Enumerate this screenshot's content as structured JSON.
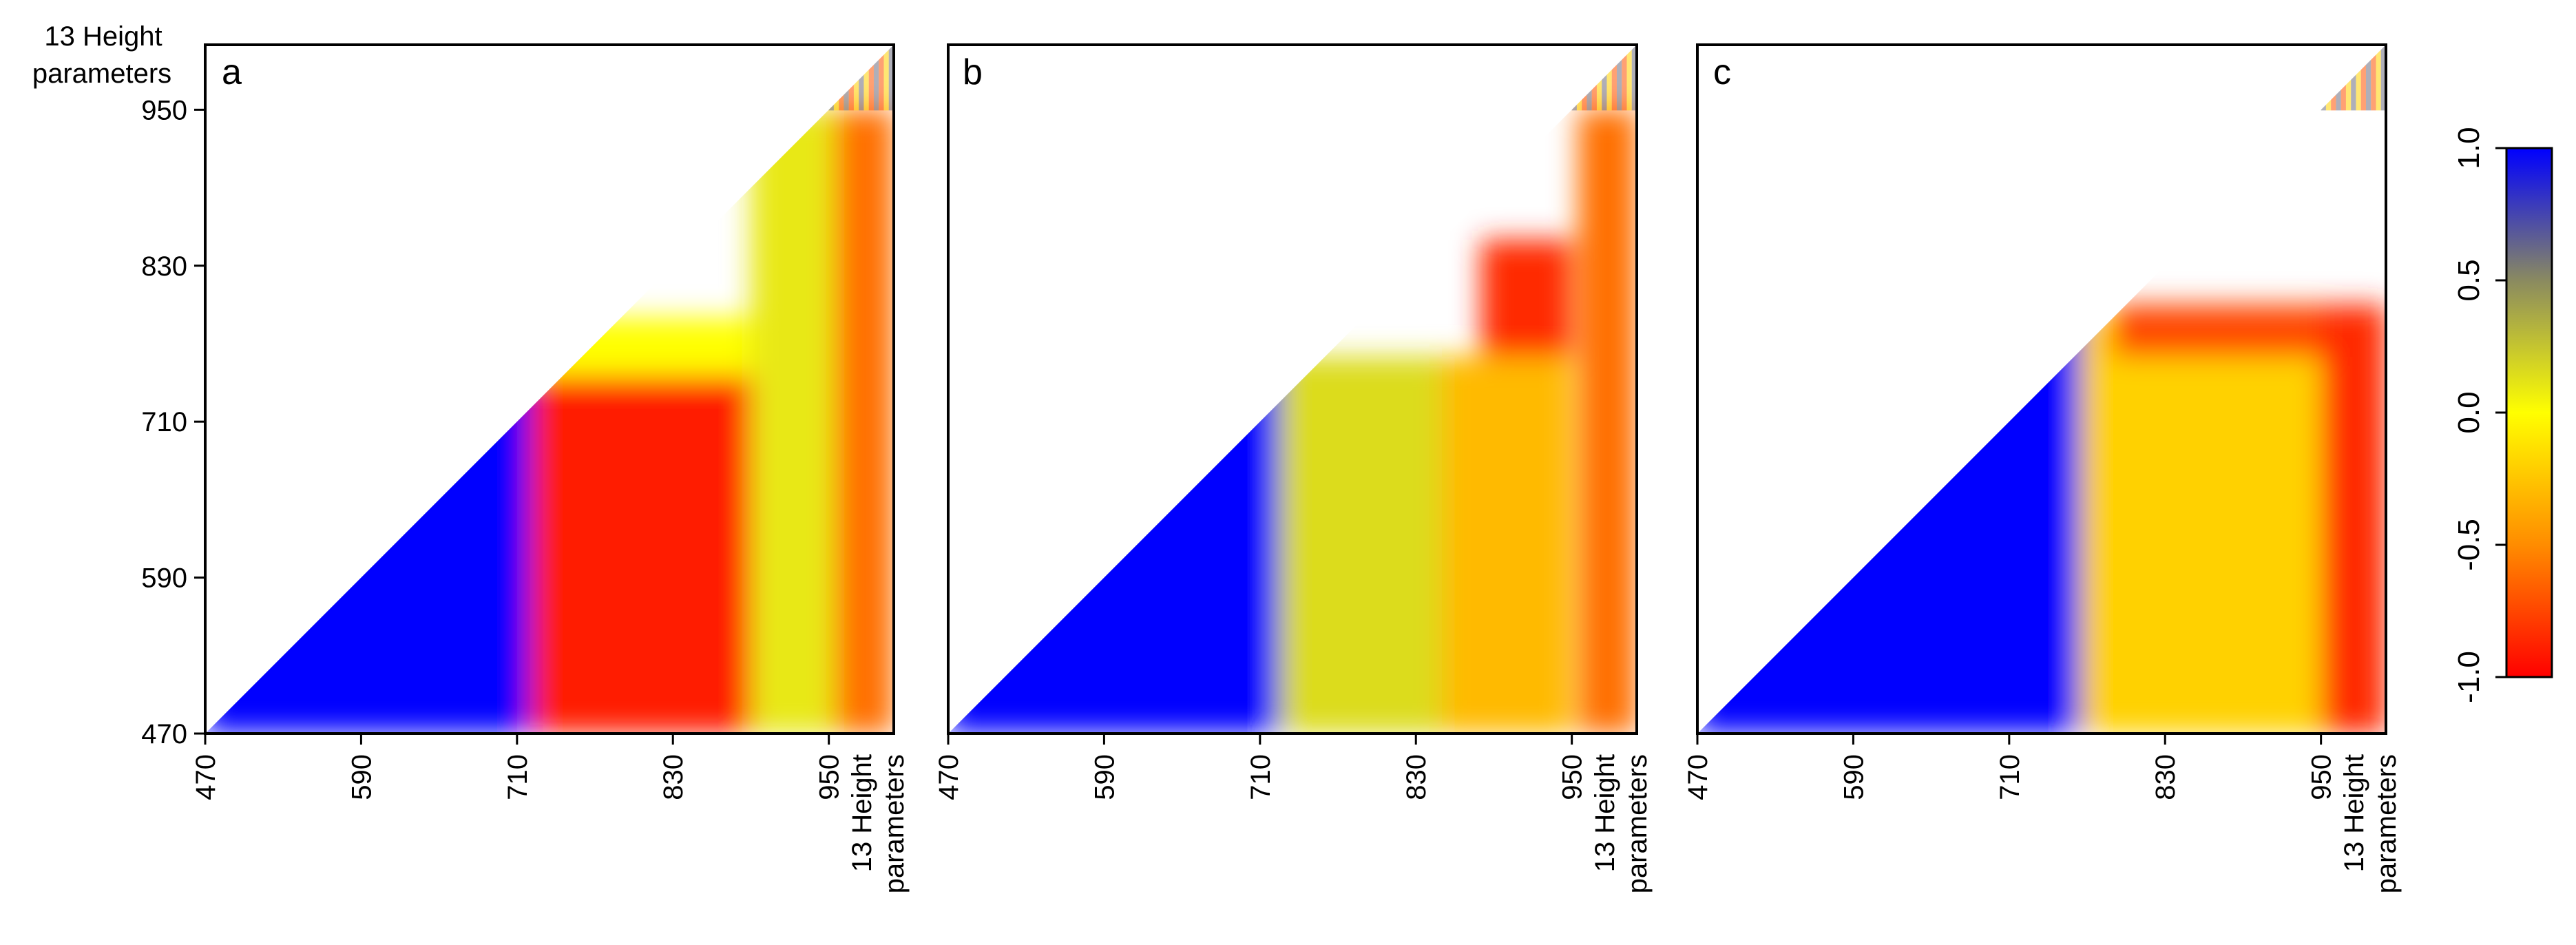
{
  "chart_data": {
    "type": "heatmap",
    "title": "",
    "layout": "three lower-triangular correlation heatmaps sharing one color scale",
    "axes": {
      "wavelength_ticks": [
        "470",
        "590",
        "710",
        "830",
        "950"
      ],
      "wavelength_range": [
        470,
        1000
      ],
      "extra_block_label_line1": "13 Height",
      "extra_block_label_line2": "parameters",
      "y_axis_top_label_line1": "13 Height",
      "y_axis_top_label_line2": "parameters",
      "extra_block_count": 13
    },
    "panels": [
      {
        "label": "a",
        "regions": [
          {
            "x": [
              470,
              720
            ],
            "y": [
              470,
              1000
            ],
            "r": 1.0
          },
          {
            "x": [
              720,
              945
            ],
            "y": [
              470,
              745
            ],
            "r": -0.9
          },
          {
            "x": [
              720,
              945
            ],
            "y": [
              745,
              790
            ],
            "r": 0.0
          },
          {
            "x": [
              890,
              955
            ],
            "y": [
              470,
              950
            ],
            "r": 0.1
          },
          {
            "x": [
              955,
              1000
            ],
            "y": [
              470,
              950
            ],
            "r": -0.6
          }
        ]
      },
      {
        "label": "b",
        "regions": [
          {
            "x": [
              470,
              725
            ],
            "y": [
              470,
              1000
            ],
            "r": 1.0
          },
          {
            "x": [
              725,
              850
            ],
            "y": [
              470,
              760
            ],
            "r": 0.15
          },
          {
            "x": [
              850,
              950
            ],
            "y": [
              470,
              760
            ],
            "r": -0.3
          },
          {
            "x": [
              880,
              950
            ],
            "y": [
              760,
              850
            ],
            "r": -0.85
          },
          {
            "x": [
              955,
              1000
            ],
            "y": [
              470,
              950
            ],
            "r": -0.6
          }
        ]
      },
      {
        "label": "c",
        "regions": [
          {
            "x": [
              470,
              765
            ],
            "y": [
              470,
              1000
            ],
            "r": 1.0
          },
          {
            "x": [
              765,
              950
            ],
            "y": [
              470,
              790
            ],
            "r": -0.2
          },
          {
            "x": [
              790,
              950
            ],
            "y": [
              760,
              800
            ],
            "r": -0.75
          },
          {
            "x": [
              950,
              1000
            ],
            "y": [
              470,
              800
            ],
            "r": -0.85
          }
        ]
      }
    ],
    "colorbar": {
      "range": [
        -1.0,
        1.0
      ],
      "ticks": [
        "-1.0",
        "-0.5",
        "0.0",
        "0.5",
        "1.0"
      ],
      "colors": {
        "neg": "#ff0000",
        "mid": "#ffff00",
        "pos": "#0000ff"
      }
    }
  }
}
